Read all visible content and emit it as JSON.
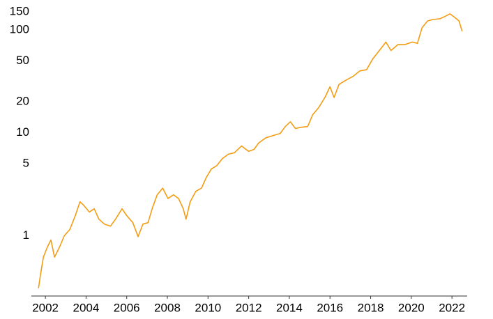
{
  "chart_data": {
    "type": "line",
    "log_y": true,
    "color": "#f39c12",
    "grid": false,
    "x": [
      2001.66,
      2001.76,
      2001.9,
      2002.1,
      2002.27,
      2002.45,
      2002.7,
      2002.93,
      2003.2,
      2003.47,
      2003.7,
      2003.88,
      2004.16,
      2004.4,
      2004.63,
      2004.9,
      2005.2,
      2005.45,
      2005.77,
      2006.0,
      2006.3,
      2006.56,
      2006.8,
      2007.05,
      2007.25,
      2007.5,
      2007.77,
      2008.03,
      2008.3,
      2008.55,
      2008.78,
      2008.92,
      2009.12,
      2009.4,
      2009.68,
      2009.92,
      2010.16,
      2010.43,
      2010.7,
      2011.0,
      2011.3,
      2011.65,
      2012.0,
      2012.26,
      2012.5,
      2012.85,
      2013.2,
      2013.55,
      2013.8,
      2014.05,
      2014.3,
      2014.55,
      2014.9,
      2015.15,
      2015.44,
      2015.75,
      2016.0,
      2016.2,
      2016.44,
      2016.8,
      2017.13,
      2017.47,
      2017.8,
      2018.1,
      2018.5,
      2018.75,
      2019.0,
      2019.35,
      2019.7,
      2020.05,
      2020.3,
      2020.53,
      2020.8,
      2021.05,
      2021.4,
      2021.66,
      2021.9,
      2022.14,
      2022.35,
      2022.5
    ],
    "values": [
      0.31,
      0.42,
      0.62,
      0.78,
      0.91,
      0.62,
      0.78,
      1.0,
      1.15,
      1.57,
      2.14,
      1.98,
      1.7,
      1.83,
      1.45,
      1.3,
      1.24,
      1.45,
      1.83,
      1.57,
      1.34,
      0.98,
      1.3,
      1.34,
      1.83,
      2.5,
      2.9,
      2.3,
      2.5,
      2.3,
      1.83,
      1.45,
      2.14,
      2.7,
      2.9,
      3.7,
      4.45,
      4.8,
      5.6,
      6.2,
      6.4,
      7.45,
      6.6,
      6.9,
      8.0,
      8.95,
      9.4,
      9.85,
      11.5,
      12.8,
      11.0,
      11.3,
      11.5,
      15.0,
      17.5,
      22,
      28,
      22,
      29.5,
      32.6,
      35.3,
      39.9,
      41,
      52,
      65.6,
      76,
      63,
      72,
      72,
      76,
      74,
      105,
      122,
      126,
      128,
      135,
      143,
      132,
      122,
      97
    ],
    "xlim": [
      2001.31,
      2022.75
    ],
    "xticks": [
      2002,
      2004,
      2006,
      2008,
      2010,
      2012,
      2014,
      2016,
      2018,
      2020,
      2022
    ],
    "ylim": [
      0.26,
      172
    ],
    "yticks": [
      1,
      5,
      10,
      20,
      50,
      100,
      150
    ]
  }
}
